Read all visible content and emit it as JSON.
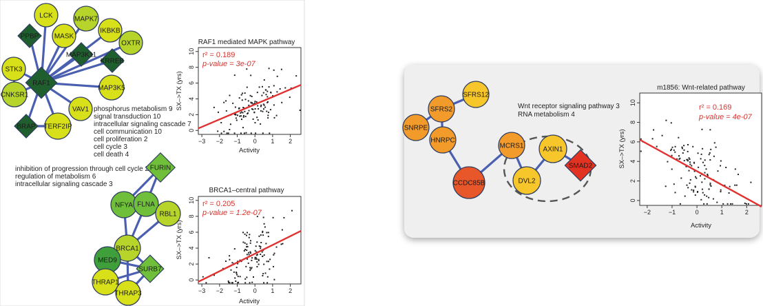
{
  "colors": {
    "edge": "#4a5fb0",
    "regression": "#e03030",
    "stat_text": "#d9322d",
    "panel_bg": "#efefef",
    "yellow": "#d7e018",
    "yellow_green": "#b7d42a",
    "green": "#6fbf3a",
    "dark_green": "#1f5f2e",
    "light_orange": "#f7c62a",
    "orange": "#f29a2a",
    "dark_orange": "#e8572a",
    "red": "#e23222"
  },
  "left_panel": {
    "network1": {
      "nodes": [
        {
          "id": "LCK",
          "shape": "circle",
          "color": "yellow"
        },
        {
          "id": "MASK",
          "shape": "circle",
          "color": "yellow"
        },
        {
          "id": "MAPK7",
          "shape": "circle",
          "color": "yellow_green"
        },
        {
          "id": "IKBKB",
          "shape": "circle",
          "color": "yellow"
        },
        {
          "id": "PPBP",
          "shape": "diamond",
          "color": "dark_green"
        },
        {
          "id": "MAP3K11",
          "shape": "diamond",
          "color": "dark_green"
        },
        {
          "id": "KRREB",
          "shape": "diamond",
          "color": "dark_green"
        },
        {
          "id": "OXTR",
          "shape": "circle",
          "color": "yellow_green"
        },
        {
          "id": "STK3",
          "shape": "circle",
          "color": "yellow"
        },
        {
          "id": "RAF1",
          "shape": "diamond",
          "color": "dark_green"
        },
        {
          "id": "MAP3K5",
          "shape": "circle",
          "color": "yellow"
        },
        {
          "id": "CNKSR1",
          "shape": "circle",
          "color": "yellow_green"
        },
        {
          "id": "VAV1",
          "shape": "circle",
          "color": "yellow"
        },
        {
          "id": "BRAP",
          "shape": "diamond",
          "color": "dark_green"
        },
        {
          "id": "TERF2IP",
          "shape": "circle",
          "color": "yellow"
        }
      ],
      "annotations": [
        "phosphorus metabolism   9",
        "signal transduction   10",
        "intracellular signaling cascade   7",
        "cell communication  10",
        "cell proliferation     2",
        "cell cycle     3",
        "cell death     4"
      ]
    },
    "network2": {
      "nodes": [
        {
          "id": "FURIN",
          "shape": "diamond",
          "color": "green"
        },
        {
          "id": "NFYA",
          "shape": "circle",
          "color": "green"
        },
        {
          "id": "FLNA",
          "shape": "circle",
          "color": "green"
        },
        {
          "id": "RBL1",
          "shape": "circle",
          "color": "yellow_green"
        },
        {
          "id": "BRCA1",
          "shape": "circle",
          "color": "yellow_green"
        },
        {
          "id": "MED9",
          "shape": "circle",
          "color": "green"
        },
        {
          "id": "SURB7",
          "shape": "diamond",
          "color": "green"
        },
        {
          "id": "THRAP1",
          "shape": "circle",
          "color": "yellow"
        },
        {
          "id": "THRAP3",
          "shape": "circle",
          "color": "yellow"
        }
      ],
      "annotations": [
        "inhibition of progression through cell cycle   2",
        "regulation of metabolism     6",
        "intracellular signaling cascade     3"
      ]
    },
    "plot1": {
      "title": "RAF1 mediated  MAPK pathway",
      "stat_r2": "r² = 0.189",
      "stat_p": "p-value = 3e-07",
      "xlabel": "Activity",
      "ylabel": "SX–>TX (yrs)"
    },
    "plot2": {
      "title": "BRCA1–central pathway",
      "stat_r2": "r² = 0.205",
      "stat_p": "p-value = 1.2e-07",
      "xlabel": "Activity",
      "ylabel": "SX–>TX (yrs)"
    }
  },
  "right_panel": {
    "network": {
      "nodes": [
        {
          "id": "SFRS12",
          "shape": "circle",
          "color": "light_orange"
        },
        {
          "id": "SFRS2",
          "shape": "circle",
          "color": "orange"
        },
        {
          "id": "SNRPE",
          "shape": "circle",
          "color": "orange"
        },
        {
          "id": "HNRPC",
          "shape": "circle",
          "color": "orange"
        },
        {
          "id": "MCRS1",
          "shape": "circle",
          "color": "orange"
        },
        {
          "id": "CCDC85B",
          "shape": "circle",
          "color": "dark_orange"
        },
        {
          "id": "AXIN1",
          "shape": "circle",
          "color": "light_orange"
        },
        {
          "id": "DVL2",
          "shape": "circle",
          "color": "light_orange"
        },
        {
          "id": "SMAD2",
          "shape": "diamond",
          "color": "red"
        }
      ],
      "annotations": [
        "Wnt receptor signaling pathway     3",
        "RNA metabolism     4"
      ]
    },
    "plot": {
      "title": "m1856: Wnt-related pathway",
      "stat_r2": "r² = 0.169",
      "stat_p": "p-value = 4e-07",
      "xlabel": "Activity",
      "ylabel": "SX–>TX (yrs)"
    }
  },
  "chart_data": [
    {
      "type": "scatter",
      "title": "RAF1 mediated  MAPK pathway",
      "xlabel": "Activity",
      "ylabel": "SX–>TX (yrs)",
      "xlim": [
        -3.2,
        2.6
      ],
      "ylim": [
        -0.5,
        10.5
      ],
      "xticks": [
        -3,
        -2,
        -1,
        0,
        1,
        2
      ],
      "yticks": [
        0,
        2,
        4,
        6,
        8,
        10
      ],
      "regression": {
        "intercept": 3.3,
        "slope": 0.95
      },
      "annotations": [
        "r² = 0.189",
        "p-value = 3e-07"
      ],
      "seed": 11,
      "n_points": 130,
      "noise": 2.1,
      "grid": false
    },
    {
      "type": "scatter",
      "title": "BRCA1–central pathway",
      "xlabel": "Activity",
      "ylabel": "SX–>TX (yrs)",
      "xlim": [
        -3.2,
        2.6
      ],
      "ylim": [
        -0.5,
        10.5
      ],
      "xticks": [
        -3,
        -2,
        -1,
        0,
        1,
        2
      ],
      "yticks": [
        0,
        2,
        4,
        6,
        8,
        10
      ],
      "regression": {
        "intercept": 3.3,
        "slope": 1.1
      },
      "annotations": [
        "r² = 0.205",
        "p-value = 1.2e-07"
      ],
      "seed": 23,
      "n_points": 130,
      "noise": 2.0,
      "grid": false
    },
    {
      "type": "scatter",
      "title": "m1856: Wnt-related pathway",
      "xlabel": "Activity",
      "ylabel": "SX–>TX (yrs)",
      "xlim": [
        -2.3,
        2.6
      ],
      "ylim": [
        -0.5,
        11
      ],
      "xticks": [
        -2,
        -1,
        0,
        1,
        2
      ],
      "yticks": [
        0,
        2,
        4,
        6,
        8,
        10
      ],
      "regression": {
        "intercept": 3.0,
        "slope": -1.4
      },
      "annotations": [
        "r² = 0.169",
        "p-value = 4e-07"
      ],
      "seed": 37,
      "n_points": 130,
      "noise": 2.0,
      "grid": false
    }
  ]
}
